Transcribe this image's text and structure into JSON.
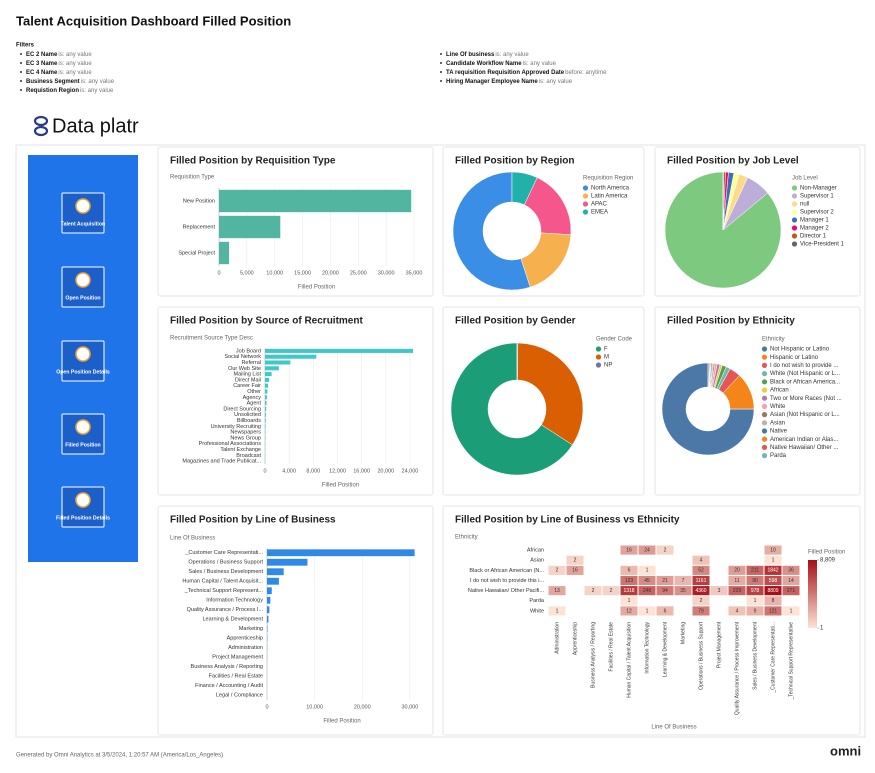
{
  "header": {
    "title": "Talent Acquisition Dashboard Filled Position",
    "filters_title": "Filters",
    "filters": [
      {
        "field": "EC 2 Name",
        "condition": "is: any value"
      },
      {
        "field": "EC 3 Name",
        "condition": "is: any value"
      },
      {
        "field": "EC 4 Name",
        "condition": "is: any value"
      },
      {
        "field": "Business Segment",
        "condition": "is: any value"
      },
      {
        "field": "Requistion Region",
        "condition": "is: any value"
      },
      {
        "field": "Line Of business",
        "condition": "is: any value"
      },
      {
        "field": "Candidate Workflow Name",
        "condition": "is: any value"
      },
      {
        "field": "TA requisition Requisition Approved Date",
        "condition": "before: anytime"
      },
      {
        "field": "Hiring Manager Employee Name",
        "condition": "is: any value"
      }
    ]
  },
  "logo": "Data platr",
  "nav": [
    "Talent Acquisition",
    "Open Position",
    "Open Position Details",
    "Filled Position",
    "Filled Position Details"
  ],
  "chart_data": [
    {
      "type": "hbar",
      "title": "Filled Position by Requisition Type",
      "y_label": "Requisition Type",
      "x_label": "Filled Position",
      "categories": [
        "New Position",
        "Replacement",
        "Special Project"
      ],
      "values": [
        34500,
        11000,
        1800
      ],
      "color": "#52b5a0",
      "xlim": [
        0,
        35000
      ],
      "xticks": [
        0,
        {
          "value": 5000,
          "label": "5,000"
        },
        {
          "value": 10000,
          "label": "10,000"
        },
        {
          "value": 15000,
          "label": "15,000"
        },
        {
          "value": 20000,
          "label": "20,000"
        },
        {
          "value": 25000,
          "label": "25,000"
        },
        {
          "value": 30000,
          "label": "30,000"
        },
        {
          "value": 35000,
          "label": "35,000"
        }
      ],
      "grid": true
    },
    {
      "type": "donut",
      "title": "Filled Position by Region",
      "legend_title": "Requisition Region",
      "categories": [
        "North America",
        "Latin America",
        "APAC",
        "EMEA"
      ],
      "values": [
        55,
        19,
        19,
        7
      ],
      "colors": [
        "#3a8ee6",
        "#f6b14e",
        "#f5568b",
        "#20b2aa"
      ]
    },
    {
      "type": "pie",
      "title": "Filled Position by Job Level",
      "legend_title": "Job Level",
      "categories": [
        "Non-Manager",
        "Supervisor 1",
        "null",
        "Supervisor 2",
        "Manager 1",
        "Manager 2",
        "Director 1",
        "Vice-President 1"
      ],
      "values": [
        86,
        7,
        2.5,
        1.5,
        1.5,
        0.8,
        0.5,
        0.2
      ],
      "colors": [
        "#7dc97f",
        "#bcaed8",
        "#fdda8a",
        "#ffff9a",
        "#3d6fb6",
        "#f0027f",
        "#bf5b17",
        "#666666"
      ]
    },
    {
      "type": "hbar",
      "title": "Filled Position by Source of Recruitment",
      "y_label": "Recruitment Source Type Desc",
      "x_label": "Filled Position",
      "categories": [
        "Job Board",
        "Social Network",
        "Referral",
        "Our Web Site",
        "Mailing List",
        "Direct Mail",
        "Career Fair",
        "Other",
        "Agency",
        "Agent",
        "Direct Sourcing",
        "Unsolicited",
        "Billboards",
        "University Recruiting",
        "Newspapers",
        "News Group",
        "Professional Associations",
        "Talent Exchange",
        "Broadcast",
        "Magazines and Trade Publicat..."
      ],
      "values": [
        24500,
        8500,
        4200,
        2300,
        1100,
        700,
        500,
        400,
        320,
        260,
        200,
        160,
        130,
        100,
        80,
        60,
        50,
        40,
        30,
        20
      ],
      "color": "#40c8c8",
      "xlim": [
        0,
        25000
      ],
      "xticks": [
        0,
        {
          "value": 4000,
          "label": "4,000"
        },
        {
          "value": 8000,
          "label": "8,000"
        },
        {
          "value": 12000,
          "label": "12,000"
        },
        {
          "value": 16000,
          "label": "16,000"
        },
        {
          "value": 20000,
          "label": "20,000"
        },
        {
          "value": 24000,
          "label": "24,000"
        }
      ],
      "grid": true
    },
    {
      "type": "donut",
      "title": "Filled Position by Gender",
      "legend_title": "Gender Code",
      "categories": [
        "F",
        "M",
        "NP"
      ],
      "values": [
        66,
        34,
        0.2
      ],
      "colors": [
        "#1b9e77",
        "#d95f02",
        "#7570b3"
      ]
    },
    {
      "type": "donut",
      "title": "Filled Position by Ethnicity",
      "legend_title": "Ethnicity",
      "categories": [
        "Not Hispanic or Latino",
        "Hispanic or Latino",
        "I do not wish to provide ...",
        "White (Not Hispanic or L...",
        "Black or African America...",
        "African",
        "Two or More Races (Not ...",
        "White",
        "Asian (Not Hispanic or L...",
        "Asian",
        "Native",
        "American Indian or Alas...",
        "Native Hawaiian/ Other ...",
        "Parda"
      ],
      "values": [
        75,
        13,
        4,
        1.5,
        1.5,
        0.8,
        1,
        0.8,
        0.5,
        0.4,
        0.4,
        0.3,
        0.3,
        0.5
      ],
      "colors": [
        "#4c78a8",
        "#f58518",
        "#e45756",
        "#72b7b2",
        "#54a24b",
        "#eeca3b",
        "#b279a2",
        "#ff9da6",
        "#9d755d",
        "#bab0ac",
        "#4c78a8",
        "#f58518",
        "#e45756",
        "#72b7b2"
      ]
    },
    {
      "type": "hbar",
      "title": "Filled Position by Line of Business",
      "y_label": "Line Of Business",
      "x_label": "Filled Position",
      "categories": [
        "_Customer Care Representati...",
        "Operations / Business Support",
        "Sales / Business Development",
        "Human Capital / Talent Acquisit...",
        "_Technical Support Represent...",
        "Information Technology",
        "Quality Assurance / Process I...",
        "Learning & Development",
        "Marketing",
        "Apprenticeship",
        "Administration",
        "Project Management",
        "Business Analysis / Reporting",
        "Facilities / Real Estate",
        "Finance / Accounting / Audit",
        "Legal / Compliance"
      ],
      "values": [
        31000,
        8500,
        3500,
        2500,
        1000,
        700,
        500,
        300,
        100,
        60,
        40,
        20,
        10,
        8,
        5,
        3
      ],
      "color": "#2e8ae6",
      "xlim": [
        0,
        31500
      ],
      "xticks": [
        0,
        {
          "value": 10000,
          "label": "10,000"
        },
        {
          "value": 20000,
          "label": "20,000"
        },
        {
          "value": 30000,
          "label": "30,000"
        }
      ],
      "grid": true
    },
    {
      "type": "heatmap",
      "title": "Filled Position by Line of Business vs Ethnicity",
      "y_label": "Ethnicity",
      "x_label": "Line Of Business",
      "x": [
        "Administration",
        "Apprenticeship",
        "Business Analysis / Reporting",
        "Facilities / Real Estate",
        "Human Capital / Talent Acquisition",
        "Information Technology",
        "Learning & Development",
        "Marketing",
        "Operations / Business Support",
        "Project Management",
        "Quality Assurance / Process Improvement",
        "Sales / Business Development",
        "_Customer Care Representati...",
        "_Technical Support Representative"
      ],
      "y": [
        "African",
        "Asian",
        "Black or African American (N...",
        "I do not wish to provide this i...",
        "Native Hawaiian/ Other Pacifi...",
        "Parda",
        "White"
      ],
      "values": [
        [
          null,
          null,
          null,
          null,
          16,
          24,
          2,
          null,
          null,
          null,
          null,
          null,
          10,
          null
        ],
        [
          null,
          2,
          null,
          null,
          null,
          null,
          null,
          null,
          4,
          null,
          null,
          null,
          1,
          null
        ],
        [
          2,
          16,
          null,
          null,
          6,
          1,
          null,
          null,
          52,
          null,
          20,
          211,
          1842,
          36
        ],
        [
          null,
          null,
          null,
          null,
          123,
          45,
          21,
          7,
          1161,
          null,
          11,
          90,
          598,
          14
        ],
        [
          13,
          null,
          2,
          2,
          1318,
          246,
          94,
          35,
          4360,
          3,
          229,
          978,
          8809,
          271
        ],
        [
          null,
          null,
          null,
          null,
          1,
          null,
          null,
          null,
          2,
          null,
          null,
          1,
          8,
          null
        ],
        [
          1,
          null,
          null,
          null,
          12,
          1,
          6,
          null,
          79,
          null,
          4,
          9,
          121,
          1
        ]
      ],
      "legend_title": "Filled Position",
      "color_scale": "log",
      "color_range": [
        "#fde3d6",
        "#a50f15"
      ],
      "color_ticks": [
        {
          "value": 8809,
          "label": "8,809"
        },
        1
      ]
    }
  ],
  "footer": {
    "text": "Generated by Omni Analytics at 3/5/2024, 1:20:57 AM (America/Los_Angeles)",
    "brand": "omni"
  }
}
